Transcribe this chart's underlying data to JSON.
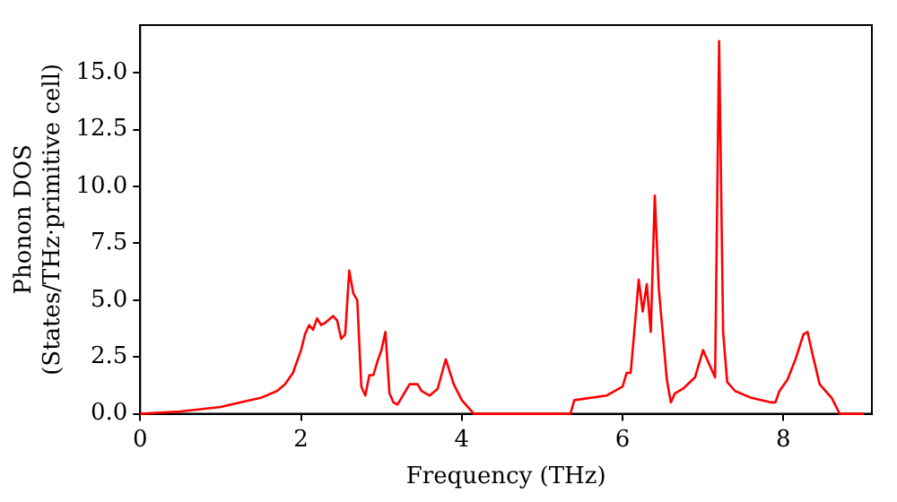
{
  "chart_data": {
    "type": "line",
    "xlabel": "Frequency (THz)",
    "ylabel": "Phonon DOS\n(States/THz·primitive cell)",
    "xlim": [
      0,
      9.1
    ],
    "xticks": [
      0,
      2,
      4,
      6,
      8
    ],
    "ylim": [
      0,
      17.1
    ],
    "yticks": [
      {
        "value": 0,
        "label": "0.0"
      },
      {
        "value": 2.5,
        "label": "2.5"
      },
      {
        "value": 5,
        "label": "5.0"
      },
      {
        "value": 7.5,
        "label": "7.5"
      },
      {
        "value": 10,
        "label": "10.0"
      },
      {
        "value": 12.5,
        "label": "12.5"
      },
      {
        "value": 15,
        "label": "15.0"
      }
    ],
    "grid": false,
    "legend": false,
    "marker": "none",
    "line_style": "solid",
    "series": [
      {
        "color": "#ff0000",
        "x": [
          0,
          0.5,
          1,
          1.3,
          1.5,
          1.7,
          1.8,
          1.9,
          2.0,
          2.05,
          2.1,
          2.15,
          2.2,
          2.25,
          2.3,
          2.4,
          2.45,
          2.5,
          2.55,
          2.6,
          2.65,
          2.7,
          2.75,
          2.8,
          2.85,
          2.9,
          2.95,
          3.0,
          3.05,
          3.1,
          3.15,
          3.2,
          3.25,
          3.3,
          3.35,
          3.45,
          3.5,
          3.6,
          3.7,
          3.8,
          3.9,
          4.0,
          4.15,
          5.35,
          5.4,
          5.8,
          6.0,
          6.05,
          6.1,
          6.15,
          6.2,
          6.25,
          6.3,
          6.35,
          6.4,
          6.45,
          6.55,
          6.6,
          6.65,
          6.75,
          6.9,
          7.0,
          7.15,
          7.2,
          7.25,
          7.3,
          7.4,
          7.6,
          7.85,
          7.9,
          7.95,
          8.05,
          8.15,
          8.25,
          8.3,
          8.35,
          8.45,
          8.55,
          8.6,
          8.7,
          9.0
        ],
        "values": [
          0,
          0.1,
          0.3,
          0.55,
          0.7,
          1.0,
          1.3,
          1.8,
          2.8,
          3.5,
          3.9,
          3.7,
          4.2,
          3.9,
          4.0,
          4.3,
          4.1,
          3.3,
          3.5,
          6.3,
          5.3,
          5.0,
          1.2,
          0.8,
          1.7,
          1.7,
          2.3,
          2.8,
          3.6,
          0.9,
          0.5,
          0.4,
          0.7,
          1.0,
          1.3,
          1.3,
          1.0,
          0.8,
          1.1,
          2.4,
          1.3,
          0.6,
          0,
          0,
          0.6,
          0.8,
          1.2,
          1.8,
          1.8,
          3.8,
          5.9,
          4.5,
          5.7,
          3.6,
          9.6,
          5.5,
          1.5,
          0.5,
          0.9,
          1.1,
          1.6,
          2.8,
          1.6,
          16.4,
          3.6,
          1.4,
          1.0,
          0.7,
          0.5,
          0.5,
          1.0,
          1.5,
          2.4,
          3.5,
          3.6,
          2.8,
          1.3,
          0.9,
          0.7,
          0,
          0
        ]
      }
    ]
  }
}
